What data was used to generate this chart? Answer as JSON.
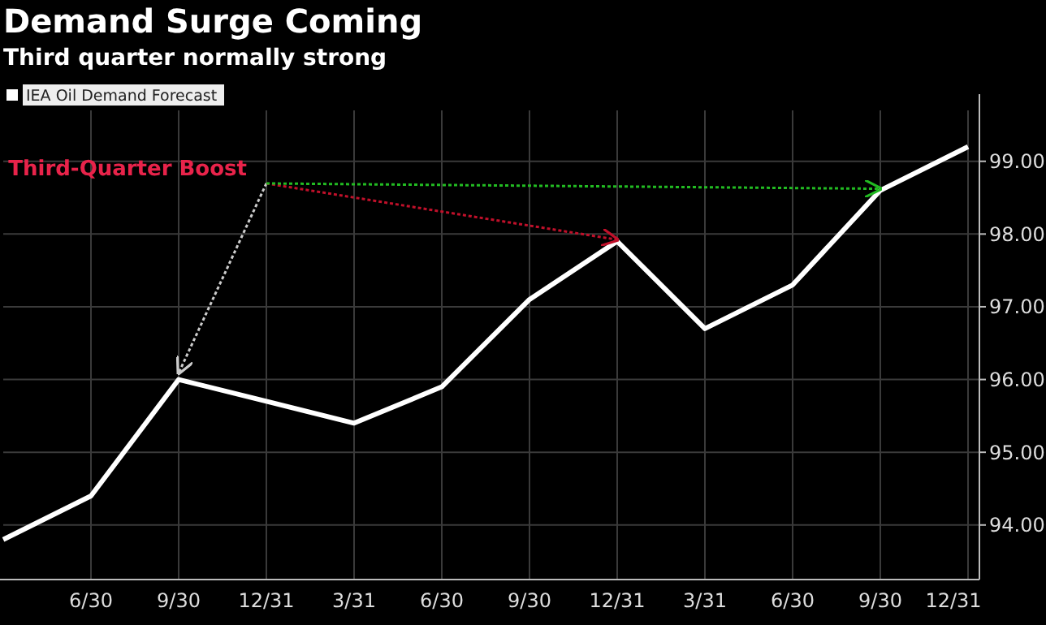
{
  "chart_data": {
    "type": "line",
    "title": "Demand Surge Coming",
    "subtitle": "Third quarter normally strong",
    "categories": [
      null,
      "6/30",
      "9/30",
      "12/31",
      "3/31",
      "6/30",
      "9/30",
      "12/31",
      "3/31",
      "6/30",
      "9/30",
      "12/31"
    ],
    "series": [
      {
        "name": "IEA Oil Demand Forecast",
        "color": "#ffffff",
        "values": [
          93.8,
          94.4,
          96.0,
          95.7,
          95.4,
          95.9,
          97.1,
          97.9,
          96.7,
          97.3,
          98.6,
          99.2
        ]
      }
    ],
    "ylim": [
      93.25,
      99.7
    ],
    "yticks": [
      {
        "value": 94,
        "label": "94.00"
      },
      {
        "value": 95,
        "label": "95.00"
      },
      {
        "value": 96,
        "label": "96.00"
      },
      {
        "value": 97,
        "label": "97.00"
      },
      {
        "value": 98,
        "label": "98.00"
      },
      {
        "value": 99,
        "label": "99.00"
      }
    ],
    "grid": true,
    "legend": "top left",
    "marker": "none",
    "line_style": "solid",
    "annotations": [
      {
        "text": "Third-Quarter Boost",
        "x": "9/30",
        "y": 96.0
      }
    ]
  }
}
